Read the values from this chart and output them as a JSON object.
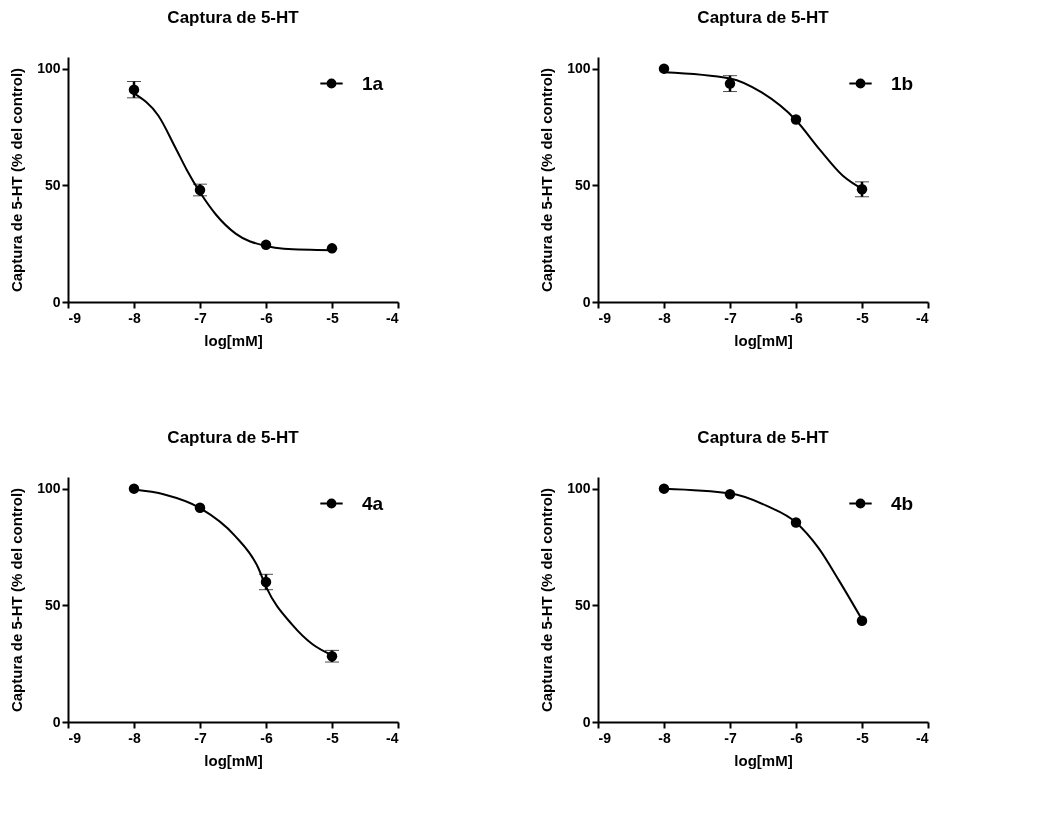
{
  "chart_data": [
    {
      "type": "scatter",
      "title": "Captura de 5-HT",
      "xlabel": "log[mM]",
      "ylabel": "Captura de 5-HT (% del control)",
      "xlim": [
        -9,
        -4
      ],
      "xticks": [
        -9,
        -8,
        -7,
        -6,
        -5,
        -4
      ],
      "ylim": [
        0,
        105
      ],
      "yticks": [
        0,
        50,
        100
      ],
      "legend": "top right",
      "series": [
        {
          "name": "1a",
          "marker": "circle",
          "color": "#000000",
          "x": [
            -8,
            -7,
            -6,
            -5
          ],
          "values": [
            91,
            48,
            24.5,
            23
          ],
          "errors": [
            3.5,
            2.5,
            null,
            null
          ]
        },
        {
          "type": "line",
          "marker": "none",
          "color": "#000000",
          "x": [
            -8,
            -7.63,
            -7.37,
            -7.2,
            -7,
            -6.76,
            -6.46,
            -6,
            -5.73,
            -5
          ],
          "values": [
            89.4,
            79.8,
            66,
            56.6,
            47,
            37.5,
            29.3,
            24,
            22.8,
            22.2
          ]
        }
      ]
    },
    {
      "type": "scatter",
      "title": "Captura de 5-HT",
      "xlabel": "log[mM]",
      "ylabel": "Captura de 5-HT (% del control)",
      "xlim": [
        -9,
        -4
      ],
      "xticks": [
        -9,
        -8,
        -7,
        -6,
        -5,
        -4
      ],
      "ylim": [
        0,
        105
      ],
      "yticks": [
        0,
        50,
        100
      ],
      "legend": "top right",
      "series": [
        {
          "name": "1b",
          "marker": "circle",
          "color": "#000000",
          "x": [
            -8,
            -7,
            -6,
            -5
          ],
          "values": [
            100,
            93.6,
            78.2,
            48.3
          ],
          "errors": [
            null,
            3.4,
            null,
            3.2
          ]
        },
        {
          "type": "line",
          "marker": "none",
          "color": "#000000",
          "x": [
            -8,
            -7,
            -6.52,
            -6,
            -5.64,
            -5.29,
            -5
          ],
          "values": [
            98.5,
            95.8,
            89.8,
            77.9,
            65.3,
            54.1,
            48.5
          ]
        }
      ]
    },
    {
      "type": "scatter",
      "title": "Captura de 5-HT",
      "xlabel": "log[mM]",
      "ylabel": "Captura de 5-HT (% del control)",
      "xlim": [
        -9,
        -4
      ],
      "xticks": [
        -9,
        -8,
        -7,
        -6,
        -5,
        -4
      ],
      "ylim": [
        0,
        105
      ],
      "yticks": [
        0,
        50,
        100
      ],
      "legend": "top right",
      "series": [
        {
          "name": "4a",
          "marker": "circle",
          "color": "#000000",
          "x": [
            -8,
            -7,
            -6,
            -5
          ],
          "values": [
            100,
            91.8,
            60,
            28.2
          ],
          "errors": [
            null,
            null,
            3.3,
            2.5
          ]
        },
        {
          "type": "line",
          "marker": "none",
          "color": "#000000",
          "x": [
            -8,
            -7.54,
            -7,
            -6.47,
            -6.12,
            -6,
            -5.6,
            -5.3,
            -5
          ],
          "values": [
            99.6,
            97.5,
            91.7,
            79.8,
            66.2,
            58,
            41.6,
            33.4,
            28.6
          ]
        }
      ]
    },
    {
      "type": "scatter",
      "title": "Captura de 5-HT",
      "xlabel": "log[mM]",
      "ylabel": "Captura de 5-HT (% del control)",
      "xlim": [
        -9,
        -4
      ],
      "xticks": [
        -9,
        -8,
        -7,
        -6,
        -5,
        -4
      ],
      "ylim": [
        0,
        105
      ],
      "yticks": [
        0,
        50,
        100
      ],
      "legend": "top right",
      "series": [
        {
          "name": "4b",
          "marker": "circle",
          "color": "#000000",
          "x": [
            -8,
            -7,
            -6,
            -5
          ],
          "values": [
            100,
            97.6,
            85.5,
            43.4
          ]
        },
        {
          "type": "line",
          "marker": "none",
          "color": "#000000",
          "x": [
            -8,
            -7,
            -6.45,
            -6,
            -5.66,
            -5.35,
            -5
          ],
          "values": [
            100,
            98,
            92.7,
            85.5,
            74.6,
            60.7,
            43.9
          ]
        }
      ]
    }
  ]
}
